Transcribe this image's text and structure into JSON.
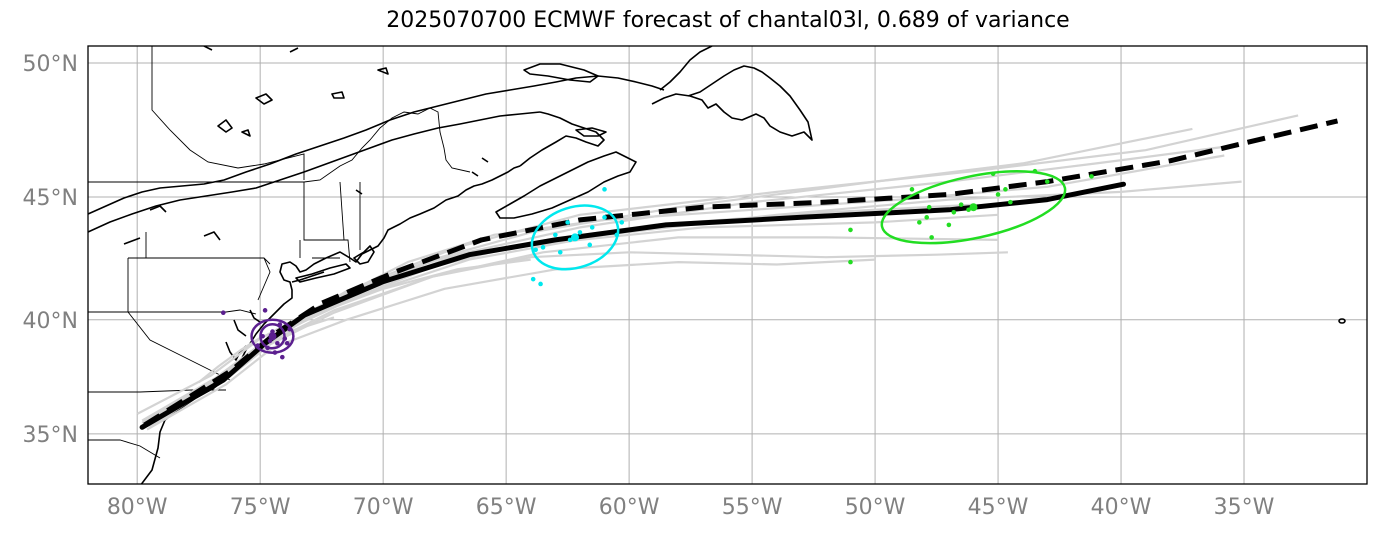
{
  "title": "2025070700 ECMWF forecast of chantal03l, 0.689 of variance",
  "map": {
    "type": "map",
    "lon_range": [
      -82,
      -30
    ],
    "lat_range": [
      32.7,
      50.6
    ],
    "grid": true,
    "x_ticks": [
      {
        "lon": -80,
        "label": "80°W"
      },
      {
        "lon": -75,
        "label": "75°W"
      },
      {
        "lon": -70,
        "label": "70°W"
      },
      {
        "lon": -65,
        "label": "65°W"
      },
      {
        "lon": -60,
        "label": "60°W"
      },
      {
        "lon": -55,
        "label": "55°W"
      },
      {
        "lon": -50,
        "label": "50°W"
      },
      {
        "lon": -45,
        "label": "45°W"
      },
      {
        "lon": -40,
        "label": "40°W"
      },
      {
        "lon": -35,
        "label": "35°W"
      }
    ],
    "y_ticks": [
      {
        "lat": 50,
        "label": "50°N"
      },
      {
        "lat": 45,
        "label": "45°N"
      },
      {
        "lat": 40,
        "label": "40°N"
      },
      {
        "lat": 35,
        "label": "35°N"
      }
    ],
    "colors": {
      "ensemble": "#d3d3d3",
      "mean_track": "#000000",
      "forecast_track": "#000000",
      "day1": "#5b1f8f",
      "day2": "#00e8ee",
      "day3": "#22dd22",
      "coast": "#000000",
      "grid": "#b0b0b0"
    },
    "mean_track": [
      [
        -79.8,
        35.3
      ],
      [
        -76.5,
        37.4
      ],
      [
        -74.8,
        39.0
      ],
      [
        -73.2,
        40.2
      ],
      [
        -70,
        41.6
      ],
      [
        -66.5,
        42.7
      ],
      [
        -63,
        43.3
      ],
      [
        -58.5,
        43.9
      ],
      [
        -53,
        44.2
      ],
      [
        -47,
        44.5
      ],
      [
        -43,
        44.9
      ],
      [
        -39.9,
        45.5
      ]
    ],
    "forecast_track": [
      [
        -79.7,
        35.4
      ],
      [
        -76.2,
        37.8
      ],
      [
        -74.4,
        39.4
      ],
      [
        -72.5,
        40.7
      ],
      [
        -69.5,
        42.0
      ],
      [
        -66,
        43.3
      ],
      [
        -62,
        44.1
      ],
      [
        -57,
        44.6
      ],
      [
        -52,
        44.8
      ],
      [
        -47,
        45.1
      ],
      [
        -43,
        45.6
      ],
      [
        -38,
        46.4
      ],
      [
        -31.2,
        47.9
      ]
    ],
    "ensemble_tracks": [
      [
        [
          -80,
          35.9
        ],
        [
          -77,
          37.6
        ],
        [
          -75,
          39.2
        ],
        [
          -72,
          40.9
        ],
        [
          -68,
          42.5
        ],
        [
          -64,
          43.6
        ],
        [
          -58,
          44.6
        ],
        [
          -50,
          45.6
        ],
        [
          -44,
          46.3
        ],
        [
          -37.1,
          47.6
        ]
      ],
      [
        [
          -79.8,
          35.6
        ],
        [
          -76.8,
          37.5
        ],
        [
          -74.8,
          39.1
        ],
        [
          -71.5,
          40.9
        ],
        [
          -67,
          42.7
        ],
        [
          -62,
          43.8
        ],
        [
          -55,
          44.8
        ],
        [
          -47,
          45.6
        ],
        [
          -41,
          46.3
        ],
        [
          -35.2,
          47.0
        ]
      ],
      [
        [
          -79.5,
          35.5
        ],
        [
          -76.5,
          37.6
        ],
        [
          -74.5,
          39.3
        ],
        [
          -71.5,
          41.2
        ],
        [
          -67,
          43.0
        ],
        [
          -62,
          44.3
        ],
        [
          -54,
          45.2
        ],
        [
          -46,
          46.0
        ],
        [
          -39,
          46.8
        ],
        [
          -32.8,
          48.1
        ]
      ],
      [
        [
          -79.7,
          35.3
        ],
        [
          -76.6,
          37.3
        ],
        [
          -74.7,
          38.9
        ],
        [
          -72,
          40.3
        ],
        [
          -68,
          41.8
        ],
        [
          -63.5,
          42.8
        ],
        [
          -58,
          43.4
        ],
        [
          -52,
          43.4
        ],
        [
          -45,
          43.3
        ]
      ],
      [
        [
          -79.6,
          35.2
        ],
        [
          -76.4,
          37.2
        ],
        [
          -74.5,
          38.8
        ],
        [
          -71.5,
          40.0
        ],
        [
          -67.5,
          41.3
        ],
        [
          -63,
          42.1
        ],
        [
          -58,
          42.4
        ],
        [
          -54,
          42.3
        ],
        [
          -50,
          42.5
        ]
      ],
      [
        [
          -79.7,
          35.4
        ],
        [
          -76.3,
          37.5
        ],
        [
          -74.3,
          39.2
        ],
        [
          -72,
          40.4
        ],
        [
          -68,
          41.8
        ],
        [
          -64,
          42.6
        ],
        [
          -60,
          42.8
        ],
        [
          -56,
          42.7
        ],
        [
          -52,
          42.6
        ],
        [
          -47.5,
          42.7
        ],
        [
          -44.6,
          42.8
        ]
      ],
      [
        [
          -79.5,
          35.3
        ],
        [
          -76,
          37.8
        ],
        [
          -74,
          39.6
        ],
        [
          -71,
          41.3
        ],
        [
          -67.5,
          42.6
        ],
        [
          -63,
          43.2
        ],
        [
          -57,
          43.8
        ],
        [
          -50,
          44.0
        ],
        [
          -45,
          44.3
        ]
      ],
      [
        [
          -79.6,
          35.4
        ],
        [
          -76.3,
          37.7
        ],
        [
          -74.5,
          39.3
        ],
        [
          -71,
          41.0
        ],
        [
          -66.5,
          42.5
        ],
        [
          -61,
          43.5
        ],
        [
          -54,
          44.3
        ],
        [
          -47,
          44.9
        ],
        [
          -40,
          45.2
        ],
        [
          -35.1,
          45.6
        ]
      ],
      [
        [
          -79.7,
          35.5
        ],
        [
          -76.5,
          37.6
        ],
        [
          -74.6,
          39.2
        ],
        [
          -72,
          40.6
        ],
        [
          -68,
          42.2
        ],
        [
          -64,
          43.2
        ],
        [
          -59,
          43.9
        ],
        [
          -52,
          44.4
        ],
        [
          -46,
          44.7
        ]
      ],
      [
        [
          -79.8,
          35.5
        ],
        [
          -76.7,
          37.5
        ],
        [
          -74.8,
          39.0
        ],
        [
          -72.6,
          40.3
        ],
        [
          -70,
          41.3
        ],
        [
          -67,
          42.1
        ],
        [
          -64,
          42.5
        ]
      ],
      [
        [
          -79.7,
          35.4
        ],
        [
          -76.6,
          37.4
        ],
        [
          -74.7,
          39.0
        ],
        [
          -72.5,
          40.6
        ],
        [
          -69,
          42.4
        ],
        [
          -65.5,
          43.5
        ],
        [
          -61,
          44.1
        ],
        [
          -55,
          44.5
        ],
        [
          -49,
          44.9
        ],
        [
          -43,
          45.4
        ],
        [
          -35.8,
          46.6
        ]
      ],
      [
        [
          -77.5,
          37.3
        ],
        [
          -76.7,
          38.0
        ],
        [
          -75.8,
          38.7
        ],
        [
          -74.9,
          39.3
        ],
        [
          -73.5,
          39.6
        ],
        [
          -72,
          40.1
        ]
      ]
    ],
    "day_markers": [
      {
        "name": "day1",
        "center": [
          -74.5,
          39.3
        ],
        "ellipse": {
          "rlon": 0.85,
          "rlat": 0.7,
          "angle": 0
        },
        "points": [
          [
            -76.5,
            40.3
          ],
          [
            -74.8,
            40.4
          ],
          [
            -74.2,
            39.8
          ],
          [
            -74.5,
            39.5
          ],
          [
            -74.9,
            39.3
          ],
          [
            -74.6,
            39.1
          ],
          [
            -74.3,
            39.0
          ],
          [
            -74.0,
            39.2
          ],
          [
            -73.8,
            39.6
          ],
          [
            -74.4,
            38.6
          ],
          [
            -74.1,
            38.4
          ],
          [
            -75.1,
            38.9
          ],
          [
            -74.7,
            38.8
          ],
          [
            -73.9,
            39.0
          ]
        ]
      },
      {
        "name": "day2",
        "center": [
          -62.2,
          43.4
        ],
        "ellipse": {
          "rlon": 1.8,
          "rlat": 1.2,
          "angle": -18
        },
        "points": [
          [
            -61.0,
            45.3
          ],
          [
            -62.5,
            44.0
          ],
          [
            -62.0,
            43.6
          ],
          [
            -61.5,
            43.8
          ],
          [
            -62.4,
            43.3
          ],
          [
            -63.0,
            43.5
          ],
          [
            -63.5,
            43.0
          ],
          [
            -63.8,
            42.9
          ],
          [
            -62.8,
            42.8
          ],
          [
            -61.0,
            44.2
          ],
          [
            -60.5,
            43.5
          ],
          [
            -60.3,
            44.0
          ],
          [
            -63.9,
            41.7
          ],
          [
            -63.6,
            41.5
          ],
          [
            -61.6,
            43.1
          ]
        ]
      },
      {
        "name": "day3",
        "center": [
          -46.0,
          44.6
        ],
        "ellipse": {
          "rlon": 3.8,
          "rlat": 1.2,
          "angle": -12
        },
        "points": [
          [
            -45.2,
            45.9
          ],
          [
            -43.5,
            46.0
          ],
          [
            -43.0,
            45.6
          ],
          [
            -41.2,
            45.8
          ],
          [
            -48.5,
            45.3
          ],
          [
            -47.8,
            44.6
          ],
          [
            -46.5,
            44.7
          ],
          [
            -46.2,
            44.5
          ],
          [
            -46.8,
            44.4
          ],
          [
            -45.0,
            45.1
          ],
          [
            -44.7,
            45.3
          ],
          [
            -44.5,
            44.8
          ],
          [
            -47.9,
            44.2
          ],
          [
            -48.2,
            44.0
          ],
          [
            -47.0,
            43.9
          ],
          [
            -51.0,
            43.7
          ],
          [
            -47.7,
            43.4
          ],
          [
            -51.0,
            42.4
          ]
        ]
      }
    ]
  }
}
